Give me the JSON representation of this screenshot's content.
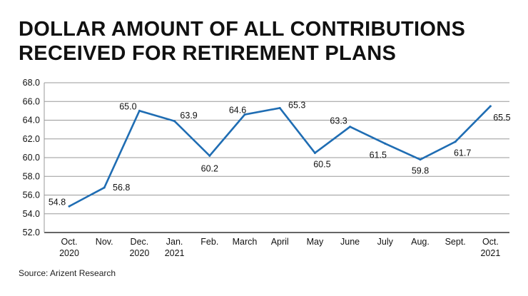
{
  "chart_data": {
    "type": "line",
    "title_lines": [
      "DOLLAR AMOUNT OF ALL CONTRIBUTIONS",
      "RECEIVED FOR RETIREMENT PLANS"
    ],
    "categories": [
      [
        "Oct.",
        "2020"
      ],
      [
        "Nov.",
        ""
      ],
      [
        "Dec.",
        "2020"
      ],
      [
        "Jan.",
        "2021"
      ],
      [
        "Feb.",
        ""
      ],
      [
        "March",
        ""
      ],
      [
        "April",
        ""
      ],
      [
        "May",
        ""
      ],
      [
        "June",
        ""
      ],
      [
        "July",
        ""
      ],
      [
        "Aug.",
        ""
      ],
      [
        "Sept.",
        ""
      ],
      [
        "Oct.",
        "2021"
      ]
    ],
    "values": [
      54.8,
      56.8,
      65.0,
      63.9,
      60.2,
      64.6,
      65.3,
      60.5,
      63.3,
      61.5,
      59.8,
      61.7,
      65.5
    ],
    "value_labels": [
      "54.8",
      "56.8",
      "65.0",
      "63.9",
      "60.2",
      "64.6",
      "65.3",
      "60.5",
      "63.3",
      "61.5",
      "59.8",
      "61.7",
      "65.5"
    ],
    "ylim": [
      52,
      68
    ],
    "yticks": [
      "52.0",
      "54.0",
      "56.0",
      "58.0",
      "60.0",
      "62.0",
      "64.0",
      "66.0",
      "68.0"
    ],
    "grid": true,
    "line_color": "#1f6db3",
    "xlabel": "",
    "ylabel": ""
  },
  "source": "Source: Arizent Research"
}
